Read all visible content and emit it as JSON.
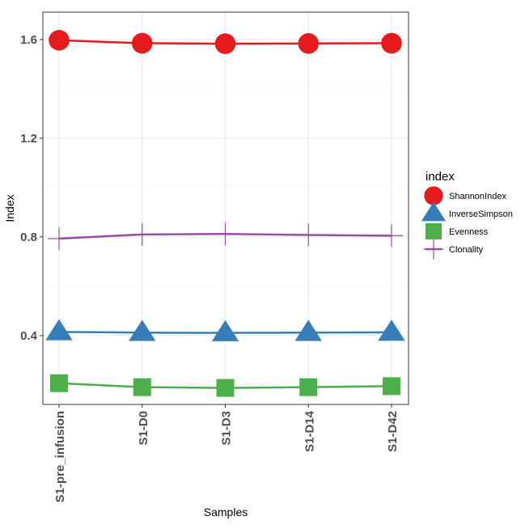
{
  "chart_data": {
    "type": "line",
    "title": "",
    "xlabel": "Samples",
    "ylabel": "Index",
    "categories": [
      "S1-pre_infusion",
      "S1-D0",
      "S1-D3",
      "S1-D14",
      "S1-D42"
    ],
    "ylim": [
      0.121,
      1.711
    ],
    "yticks": [
      0.4,
      0.8,
      1.2,
      1.6
    ],
    "ytick_labels": [
      "0.4",
      "0.8",
      "1.2",
      "1.6"
    ],
    "grid": true,
    "legend": {
      "title": "index",
      "placement": "right"
    },
    "series": [
      {
        "name": "ShannonIndex",
        "color": "#E41A1C",
        "shape": "circle",
        "values": [
          1.597,
          1.585,
          1.583,
          1.584,
          1.585
        ]
      },
      {
        "name": "InverseSimpson",
        "color": "#377EB8",
        "shape": "triangle",
        "values": [
          0.415,
          0.412,
          0.411,
          0.412,
          0.413
        ]
      },
      {
        "name": "Evenness",
        "color": "#4DAF4A",
        "shape": "square",
        "values": [
          0.207,
          0.191,
          0.188,
          0.191,
          0.195
        ]
      },
      {
        "name": "Clonality",
        "color": "#984EA3",
        "shape": "plus",
        "values": [
          0.793,
          0.81,
          0.812,
          0.808,
          0.805
        ]
      }
    ]
  }
}
